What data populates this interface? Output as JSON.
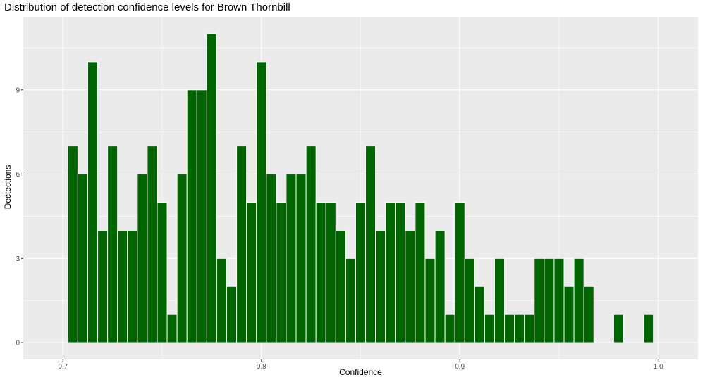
{
  "chart_data": {
    "type": "bar",
    "title": "Distribution of detection confidence levels for Brown Thornbill",
    "xlabel": "Confidence",
    "ylabel": "Dectections",
    "xlim": [
      0.68,
      1.02
    ],
    "ylim": [
      -0.6,
      11.6
    ],
    "xticks": [
      0.7,
      0.8,
      0.9,
      1.0
    ],
    "xtick_labels": [
      "0.7",
      "0.8",
      "0.9",
      "1.0"
    ],
    "yticks": [
      0,
      3,
      6,
      9
    ],
    "ytick_labels": [
      "0",
      "3",
      "6",
      "9"
    ],
    "bin_width": 0.005,
    "x": [
      0.705,
      0.71,
      0.715,
      0.72,
      0.725,
      0.73,
      0.735,
      0.74,
      0.745,
      0.75,
      0.755,
      0.76,
      0.765,
      0.77,
      0.775,
      0.78,
      0.785,
      0.79,
      0.795,
      0.8,
      0.805,
      0.81,
      0.815,
      0.82,
      0.825,
      0.83,
      0.835,
      0.84,
      0.845,
      0.85,
      0.855,
      0.86,
      0.865,
      0.87,
      0.875,
      0.88,
      0.885,
      0.89,
      0.895,
      0.9,
      0.905,
      0.91,
      0.915,
      0.92,
      0.925,
      0.93,
      0.935,
      0.94,
      0.945,
      0.95,
      0.955,
      0.96,
      0.965,
      0.98,
      0.995
    ],
    "values": [
      7,
      6,
      10,
      4,
      7,
      4,
      4,
      6,
      7,
      5,
      1,
      6,
      9,
      9,
      11,
      3,
      2,
      7,
      5,
      10,
      6,
      5,
      6,
      6,
      7,
      5,
      5,
      4,
      3,
      5,
      7,
      4,
      5,
      5,
      4,
      5,
      3,
      4,
      1,
      5,
      3,
      2,
      1,
      3,
      1,
      1,
      1,
      3,
      3,
      3,
      2,
      3,
      2,
      1,
      1
    ],
    "bar_color": "#006400",
    "panel_color": "#EBEBEB",
    "grid": true
  }
}
